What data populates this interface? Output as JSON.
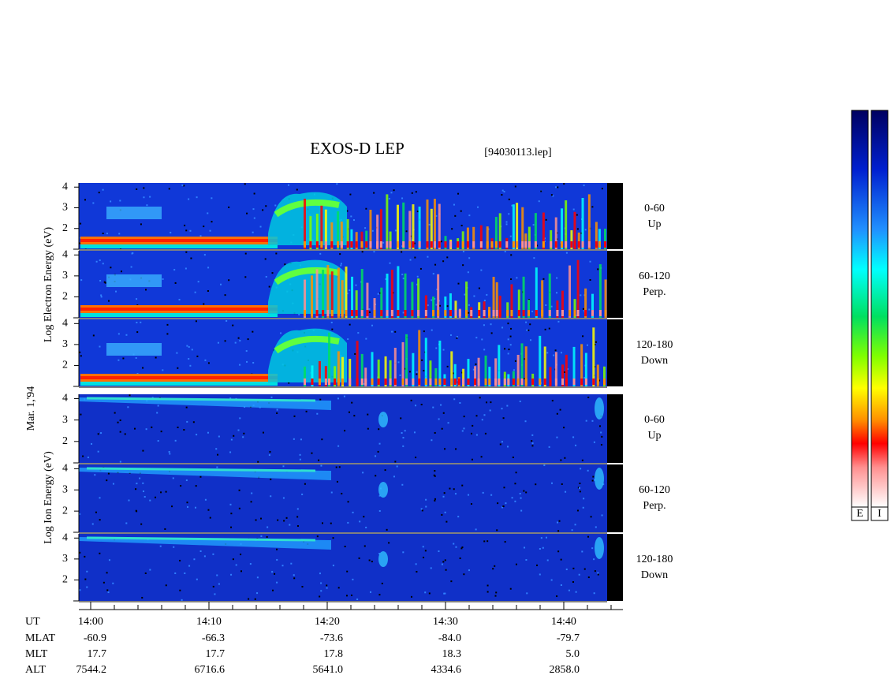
{
  "chart_data": {
    "type": "spectrogram",
    "title": "EXOS-D LEP",
    "subtitle": "[94030113.lep]",
    "date": "Mar. 1,'94",
    "ylim": [
      1,
      4.2
    ],
    "yticks": [
      2,
      3,
      4
    ],
    "xlim": [
      -1,
      45
    ],
    "xticks": [
      {
        "value": 0,
        "label": "14:00"
      },
      {
        "value": 10,
        "label": "14:10"
      },
      {
        "value": 20,
        "label": "14:20"
      },
      {
        "value": 30,
        "label": "14:30"
      },
      {
        "value": 40,
        "label": "14:40"
      }
    ],
    "xminorticks": [
      2,
      4,
      6,
      8,
      12,
      14,
      16,
      18,
      22,
      24,
      26,
      28,
      32,
      34,
      36,
      38,
      42,
      44
    ],
    "x_label": "UT",
    "electron": {
      "label": "Log Electron Energy (eV)",
      "panels": [
        {
          "range": "0-60",
          "direction": "Up"
        },
        {
          "range": "60-120",
          "direction": "Perp."
        },
        {
          "range": "120-180",
          "direction": "Down"
        }
      ]
    },
    "ion": {
      "label": "Log Ion Energy (eV)",
      "panels": [
        {
          "range": "0-60",
          "direction": "Up"
        },
        {
          "range": "60-120",
          "direction": "Perp."
        },
        {
          "range": "120-180",
          "direction": "Down"
        }
      ]
    },
    "ephemeris": [
      {
        "label": "MLAT",
        "values": [
          "-60.9",
          "-66.3",
          "-73.6",
          "-84.0",
          "-79.7"
        ]
      },
      {
        "label": "MLT",
        "values": [
          "17.7",
          "17.7",
          "17.8",
          "18.3",
          "5.0"
        ]
      },
      {
        "label": "ALT",
        "values": [
          "7544.2",
          "6716.6",
          "5641.0",
          "4334.6",
          "2858.0"
        ]
      }
    ],
    "colorbar_labels": [
      "E",
      "I"
    ]
  }
}
